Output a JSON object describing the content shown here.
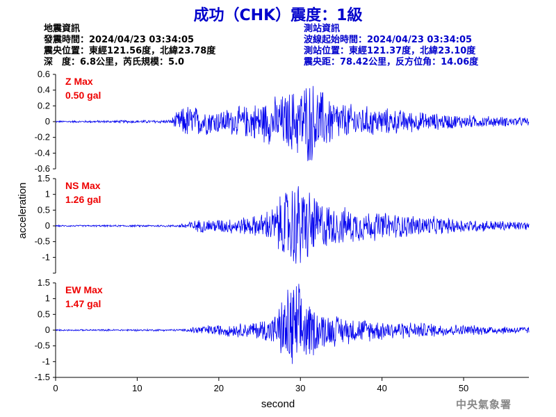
{
  "title": "成功（CHK）震度：1級",
  "earthquake_info": {
    "heading": "地震資訊",
    "origin_time": "發震時間：2024/04/23 03:34:05",
    "epicenter": "震央位置：東經121.56度，北緯23.78度",
    "depth_magnitude": "深　度：6.8公里，芮氏規模：5.0"
  },
  "station_info": {
    "heading": "測站資訊",
    "wave_start": "波線起始時間：2024/04/23 03:34:05",
    "station_location": "測站位置：東經121.37度，北緯23.10度",
    "distance_azimuth": "震央距：78.42公里，反方位角：14.06度"
  },
  "watermark": "中央氣象署",
  "colors": {
    "title": "#0000cc",
    "trace": "#0000ee",
    "max_label": "#ee0000",
    "station_info": "#0000cc"
  },
  "chart_data": {
    "type": "line",
    "xlabel": "second",
    "ylabel": "acceleration",
    "xlim": [
      0,
      58
    ],
    "xticks": [
      0,
      10,
      20,
      30,
      40,
      50
    ],
    "panels": [
      {
        "name": "Z",
        "max_label": "Z Max",
        "max_value": "0.50 gal",
        "ylim": [
          -0.6,
          0.6
        ],
        "yticks": [
          -0.6,
          -0.4,
          -0.2,
          0,
          0.2,
          0.4,
          0.6
        ],
        "ytick_labels": [
          "-0.6",
          "-0.4",
          "-0.2",
          "0",
          "0.2",
          "0.4",
          "0.6"
        ],
        "peak": 0.5,
        "envelope": [
          [
            0,
            0.01
          ],
          [
            14,
            0.02
          ],
          [
            15,
            0.12
          ],
          [
            16,
            0.2
          ],
          [
            18,
            0.16
          ],
          [
            20,
            0.14
          ],
          [
            23,
            0.18
          ],
          [
            26,
            0.26
          ],
          [
            28,
            0.32
          ],
          [
            30,
            0.42
          ],
          [
            31,
            0.5
          ],
          [
            33,
            0.34
          ],
          [
            35,
            0.22
          ],
          [
            38,
            0.18
          ],
          [
            42,
            0.14
          ],
          [
            46,
            0.1
          ],
          [
            50,
            0.08
          ],
          [
            54,
            0.06
          ],
          [
            58,
            0.05
          ]
        ]
      },
      {
        "name": "NS",
        "max_label": "NS Max",
        "max_value": "1.26 gal",
        "ylim": [
          -1.5,
          1.5
        ],
        "yticks": [
          -1.5,
          -1,
          -0.5,
          0,
          0.5,
          1,
          1.5
        ],
        "ytick_labels": [
          "",
          "-1",
          "-0.5",
          "0",
          "0.5",
          "1",
          "1.5"
        ],
        "peak": 1.26,
        "envelope": [
          [
            0,
            0.02
          ],
          [
            15,
            0.03
          ],
          [
            16,
            0.12
          ],
          [
            18,
            0.18
          ],
          [
            22,
            0.22
          ],
          [
            25,
            0.3
          ],
          [
            27,
            0.6
          ],
          [
            28,
            1.0
          ],
          [
            29,
            1.2
          ],
          [
            30,
            1.26
          ],
          [
            32,
            0.8
          ],
          [
            34,
            0.55
          ],
          [
            37,
            0.45
          ],
          [
            40,
            0.38
          ],
          [
            44,
            0.3
          ],
          [
            48,
            0.22
          ],
          [
            52,
            0.16
          ],
          [
            58,
            0.12
          ]
        ]
      },
      {
        "name": "EW",
        "max_label": "EW Max",
        "max_value": "1.47 gal",
        "ylim": [
          -1.5,
          1.5
        ],
        "yticks": [
          -1.5,
          -1,
          -0.5,
          0,
          0.5,
          1,
          1.5
        ],
        "ytick_labels": [
          "-1.5",
          "-1",
          "-0.5",
          "0",
          "0.5",
          "1",
          "1.5"
        ],
        "peak": 1.47,
        "envelope": [
          [
            0,
            0.02
          ],
          [
            16,
            0.03
          ],
          [
            17,
            0.12
          ],
          [
            20,
            0.16
          ],
          [
            24,
            0.22
          ],
          [
            27,
            0.45
          ],
          [
            28,
            1.0
          ],
          [
            29,
            1.47
          ],
          [
            30,
            1.2
          ],
          [
            31,
            0.8
          ],
          [
            33,
            0.5
          ],
          [
            35,
            0.4
          ],
          [
            38,
            0.32
          ],
          [
            42,
            0.25
          ],
          [
            46,
            0.2
          ],
          [
            50,
            0.15
          ],
          [
            54,
            0.12
          ],
          [
            58,
            0.1
          ]
        ]
      }
    ]
  }
}
